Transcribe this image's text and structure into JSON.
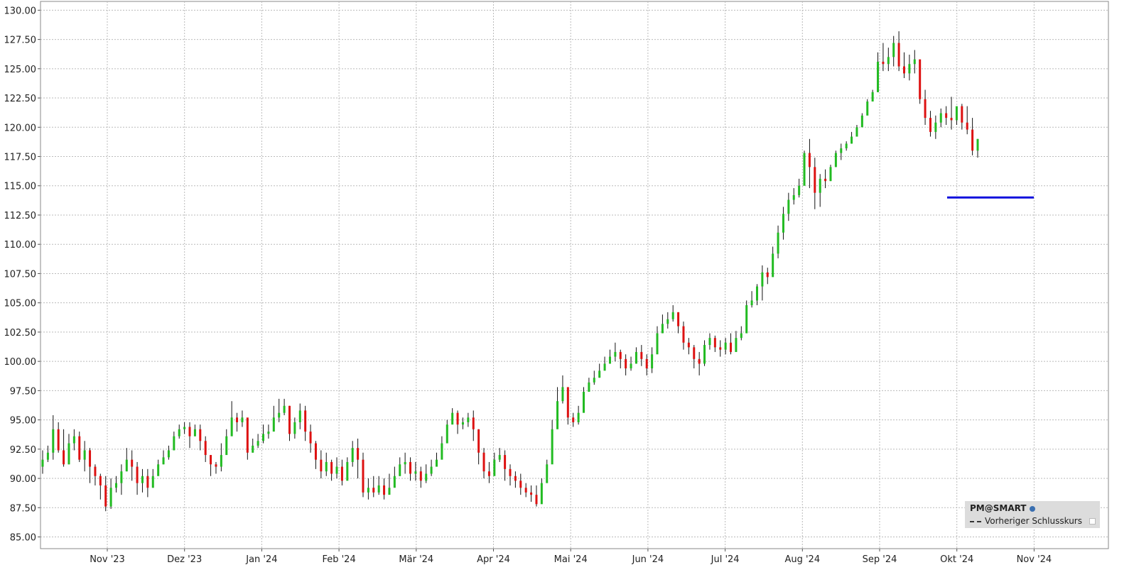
{
  "chart_data": {
    "type": "candlestick",
    "ylim": [
      84.0,
      130.75
    ],
    "y_ticks": [
      "130.00",
      "127.50",
      "125.00",
      "122.50",
      "120.00",
      "117.50",
      "115.00",
      "112.50",
      "110.00",
      "107.50",
      "105.00",
      "102.50",
      "100.00",
      "97.50",
      "95.00",
      "92.50",
      "90.00",
      "87.50",
      "85.00"
    ],
    "x_ticks": [
      "Nov '23",
      "Dez '23",
      "Jan '24",
      "Feb '24",
      "Mär '24",
      "Apr '24",
      "Mai '24",
      "Jun '24",
      "Jul '24",
      "Aug '24",
      "Sep '24",
      "Okt '24",
      "Nov '24"
    ],
    "grid": true,
    "previous_close": 114.0,
    "colors": {
      "up": "#22bb22",
      "down": "#dd1111",
      "wick": "#111111",
      "previous_close": "#1010dd",
      "grid": "#bbbbbb"
    },
    "closes": [
      91.6,
      92.2,
      94.2,
      92.4,
      91.2,
      93.0,
      93.6,
      91.6,
      92.4,
      91.0,
      90.2,
      89.4,
      87.6,
      89.2,
      89.6,
      90.6,
      91.6,
      91.0,
      89.6,
      90.2,
      89.2,
      90.2,
      91.2,
      91.8,
      92.4,
      93.6,
      94.2,
      94.4,
      93.6,
      94.2,
      93.2,
      92.0,
      91.2,
      91.0,
      92.0,
      93.6,
      95.2,
      94.8,
      95.2,
      92.2,
      92.8,
      93.2,
      93.8,
      94.0,
      95.2,
      95.6,
      96.2,
      93.8,
      94.8,
      95.8,
      94.0,
      93.0,
      91.6,
      90.6,
      91.4,
      90.4,
      91.0,
      89.8,
      91.4,
      92.6,
      91.6,
      88.8,
      89.2,
      88.8,
      89.4,
      88.6,
      89.2,
      90.2,
      91.2,
      91.4,
      90.4,
      90.6,
      89.8,
      90.4,
      91.0,
      91.6,
      93.0,
      94.6,
      95.6,
      94.6,
      94.8,
      95.2,
      94.2,
      92.2,
      90.6,
      90.2,
      91.6,
      92.0,
      90.8,
      90.2,
      89.8,
      89.2,
      88.8,
      88.6,
      87.8,
      89.6,
      91.2,
      94.2,
      96.6,
      97.8,
      95.2,
      94.8,
      95.6,
      97.4,
      98.2,
      98.6,
      99.2,
      99.8,
      100.4,
      100.8,
      100.2,
      99.4,
      99.8,
      100.8,
      100.2,
      99.4,
      100.6,
      102.4,
      103.2,
      103.6,
      104.2,
      103.0,
      101.6,
      101.2,
      100.2,
      99.8,
      101.4,
      102.0,
      101.2,
      101.0,
      101.6,
      100.8,
      102.0,
      102.4,
      104.8,
      105.2,
      106.4,
      107.6,
      107.2,
      109.2,
      111.0,
      112.6,
      113.8,
      114.2,
      115.0,
      117.8,
      116.6,
      114.4,
      115.6,
      115.4,
      116.6,
      117.8,
      118.2,
      118.6,
      119.2,
      120.0,
      121.0,
      122.2,
      123.0,
      125.6,
      125.4,
      126.0,
      127.2,
      125.2,
      124.6,
      125.4,
      125.8,
      122.4,
      120.8,
      119.6,
      120.4,
      121.2,
      120.8,
      120.6,
      121.8,
      120.4,
      119.8,
      118.0,
      119.0
    ],
    "highs": [
      92.4,
      92.8,
      95.4,
      94.8,
      94.2,
      93.8,
      94.2,
      94.0,
      93.2,
      92.6,
      91.2,
      90.4,
      90.2,
      90.0,
      90.2,
      91.2,
      92.6,
      92.4,
      91.4,
      90.8,
      90.8,
      90.8,
      91.6,
      92.4,
      92.8,
      94.0,
      94.6,
      94.8,
      94.8,
      94.6,
      94.6,
      93.6,
      92.0,
      91.4,
      93.0,
      94.2,
      96.6,
      95.6,
      95.8,
      94.8,
      93.4,
      93.8,
      94.6,
      94.6,
      96.2,
      96.8,
      96.8,
      96.2,
      95.2,
      96.4,
      96.2,
      94.6,
      93.2,
      92.4,
      92.2,
      91.6,
      91.8,
      91.6,
      91.8,
      93.2,
      93.4,
      92.2,
      90.0,
      90.2,
      90.2,
      90.0,
      90.4,
      91.0,
      91.8,
      92.2,
      91.8,
      91.4,
      91.0,
      91.2,
      91.6,
      92.2,
      93.6,
      95.0,
      96.0,
      95.8,
      95.2,
      95.6,
      95.8,
      94.2,
      92.6,
      91.4,
      92.2,
      92.6,
      92.4,
      91.2,
      90.6,
      90.4,
      89.6,
      89.4,
      89.4,
      90.0,
      91.6,
      95.0,
      97.8,
      98.8,
      97.0,
      95.6,
      96.2,
      97.8,
      98.6,
      99.2,
      99.8,
      100.4,
      101.0,
      101.6,
      101.0,
      100.6,
      100.4,
      101.2,
      101.4,
      100.6,
      101.2,
      103.0,
      104.0,
      104.2,
      104.8,
      104.2,
      103.4,
      102.0,
      101.4,
      100.8,
      101.8,
      102.4,
      102.2,
      101.8,
      102.0,
      102.4,
      102.6,
      103.0,
      105.2,
      106.0,
      106.6,
      108.2,
      108.0,
      109.8,
      111.6,
      113.2,
      114.4,
      114.8,
      115.6,
      118.0,
      119.0,
      117.4,
      116.0,
      116.4,
      116.8,
      118.0,
      118.6,
      118.8,
      119.6,
      120.2,
      121.2,
      122.4,
      123.2,
      126.4,
      127.2,
      126.8,
      127.8,
      128.2,
      126.4,
      126.2,
      126.6,
      125.6,
      123.2,
      121.4,
      121.0,
      121.6,
      121.8,
      122.6,
      121.4,
      122.0,
      121.8,
      120.8,
      119.0,
      119.0
    ],
    "lows": [
      90.4,
      91.4,
      91.6,
      92.2,
      91.0,
      91.2,
      92.4,
      91.4,
      90.6,
      89.6,
      89.4,
      88.2,
      87.2,
      87.4,
      88.8,
      88.6,
      90.6,
      89.8,
      88.6,
      88.8,
      88.4,
      89.2,
      90.4,
      91.2,
      91.6,
      92.8,
      93.4,
      93.8,
      92.6,
      93.6,
      92.4,
      91.4,
      90.2,
      90.4,
      90.6,
      92.8,
      94.6,
      94.0,
      94.4,
      91.6,
      92.2,
      92.6,
      93.0,
      93.4,
      94.2,
      94.8,
      95.4,
      93.2,
      93.4,
      94.2,
      93.2,
      92.2,
      90.8,
      90.0,
      90.2,
      89.8,
      90.0,
      89.4,
      90.0,
      91.0,
      90.0,
      88.4,
      88.2,
      88.4,
      88.6,
      88.2,
      88.8,
      89.4,
      90.2,
      90.4,
      89.8,
      89.8,
      89.2,
      89.6,
      90.2,
      91.2,
      92.2,
      93.8,
      94.8,
      93.8,
      94.2,
      94.4,
      93.2,
      91.2,
      90.0,
      89.6,
      90.6,
      91.4,
      89.8,
      89.4,
      89.2,
      88.6,
      88.4,
      88.0,
      87.6,
      88.6,
      90.2,
      93.6,
      95.6,
      96.4,
      94.6,
      94.4,
      94.6,
      96.4,
      97.4,
      98.0,
      98.6,
      99.4,
      99.8,
      100.0,
      99.4,
      98.8,
      99.2,
      99.8,
      99.6,
      98.8,
      99.0,
      101.4,
      102.6,
      102.8,
      103.4,
      102.4,
      101.0,
      100.6,
      99.4,
      98.8,
      99.6,
      101.0,
      100.8,
      100.4,
      100.6,
      100.6,
      101.0,
      101.8,
      102.4,
      104.6,
      104.8,
      105.2,
      106.6,
      107.4,
      108.8,
      110.4,
      112.0,
      113.4,
      114.0,
      115.2,
      114.8,
      113.0,
      113.2,
      114.8,
      115.4,
      116.6,
      117.2,
      118.0,
      118.6,
      119.2,
      120.4,
      121.6,
      122.4,
      123.0,
      124.8,
      124.8,
      125.2,
      124.8,
      124.2,
      124.0,
      124.6,
      122.0,
      120.2,
      119.2,
      119.0,
      120.0,
      120.2,
      119.8,
      120.2,
      119.8,
      119.4,
      117.6,
      117.4
    ]
  },
  "legend": {
    "brand": "PM@SMART",
    "previous_close_label": "Vorheriger Schlusskurs"
  }
}
